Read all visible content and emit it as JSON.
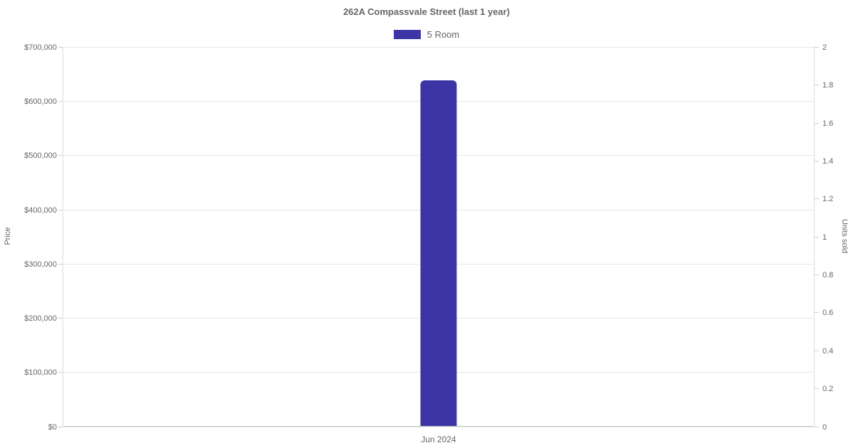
{
  "chart_data": {
    "type": "bar",
    "title": "262A Compassvale Street (last 1 year)",
    "legend_position": "top",
    "legend": [
      {
        "label": "5 Room",
        "color": "#3B35A6"
      }
    ],
    "categories": [
      "Jun 2024"
    ],
    "series": [
      {
        "name": "5 Room",
        "axis": "left",
        "values": [
          638000
        ]
      }
    ],
    "y_left": {
      "label": "Price",
      "min": 0,
      "max": 700000,
      "tick_values": [
        0,
        100000,
        200000,
        300000,
        400000,
        500000,
        600000,
        700000
      ],
      "tick_labels": [
        "$0",
        "$100,000",
        "$200,000",
        "$300,000",
        "$400,000",
        "$500,000",
        "$600,000",
        "$700,000"
      ]
    },
    "y_right": {
      "label": "Units sold",
      "min": 0,
      "max": 2,
      "tick_values": [
        0,
        0.2,
        0.4,
        0.6,
        0.8,
        1,
        1.2,
        1.4,
        1.6,
        1.8,
        2
      ],
      "tick_labels": [
        "0",
        "0.2",
        "0.4",
        "0.6",
        "0.8",
        "1",
        "1.2",
        "1.4",
        "1.6",
        "1.8",
        "2"
      ]
    },
    "grid": "horizontal",
    "colors": {
      "bar": "#3B35A6",
      "grid_line": "#e7e7e7",
      "axis_line": "#cfcfcf",
      "text": "#666666",
      "background": "#ffffff"
    }
  }
}
